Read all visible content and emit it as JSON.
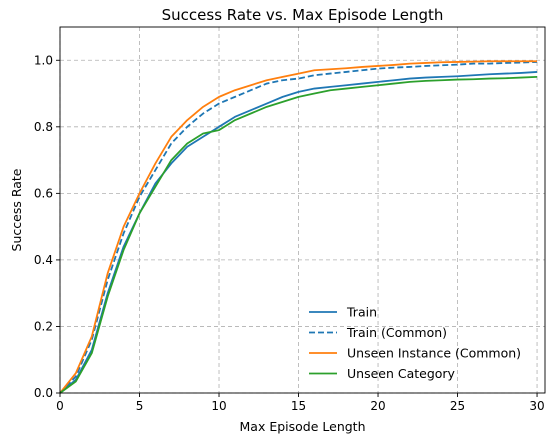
{
  "chart_data": {
    "type": "line",
    "title": "Success Rate vs. Max Episode Length",
    "xlabel": "Max Episode Length",
    "ylabel": "Success Rate",
    "xlim": [
      0,
      30.5
    ],
    "ylim": [
      0,
      1.1
    ],
    "xticks": [
      0,
      5,
      10,
      15,
      20,
      25,
      30
    ],
    "yticks": [
      0.0,
      0.2,
      0.4,
      0.6,
      0.8,
      1.0
    ],
    "xtick_labels": [
      "0",
      "5",
      "10",
      "15",
      "20",
      "25",
      "30"
    ],
    "ytick_labels": [
      "0.0",
      "0.2",
      "0.4",
      "0.6",
      "0.8",
      "1.0"
    ],
    "grid": true,
    "legend_position": "lower-right",
    "x": [
      0,
      1,
      2,
      3,
      4,
      5,
      6,
      7,
      8,
      9,
      10,
      11,
      12,
      13,
      14,
      15,
      16,
      17,
      18,
      19,
      20,
      21,
      22,
      23,
      24,
      25,
      26,
      27,
      28,
      29,
      30
    ],
    "series": [
      {
        "name": "Train",
        "color": "#1f77b4",
        "style": "solid",
        "values": [
          0.0,
          0.04,
          0.13,
          0.3,
          0.44,
          0.54,
          0.63,
          0.69,
          0.74,
          0.77,
          0.8,
          0.83,
          0.85,
          0.87,
          0.89,
          0.905,
          0.915,
          0.92,
          0.925,
          0.93,
          0.935,
          0.94,
          0.945,
          0.948,
          0.95,
          0.952,
          0.955,
          0.958,
          0.96,
          0.962,
          0.965
        ]
      },
      {
        "name": "Train (Common)",
        "color": "#1f77b4",
        "style": "dashed",
        "values": [
          0.0,
          0.05,
          0.16,
          0.34,
          0.48,
          0.59,
          0.67,
          0.75,
          0.8,
          0.84,
          0.87,
          0.89,
          0.91,
          0.93,
          0.94,
          0.945,
          0.955,
          0.96,
          0.965,
          0.97,
          0.975,
          0.978,
          0.98,
          0.983,
          0.985,
          0.987,
          0.99,
          0.99,
          0.992,
          0.993,
          0.995
        ]
      },
      {
        "name": "Unseen Instance (Common)",
        "color": "#ff7f0e",
        "style": "solid",
        "values": [
          0.0,
          0.06,
          0.17,
          0.36,
          0.5,
          0.6,
          0.69,
          0.77,
          0.82,
          0.86,
          0.89,
          0.91,
          0.925,
          0.94,
          0.95,
          0.96,
          0.97,
          0.973,
          0.976,
          0.98,
          0.983,
          0.986,
          0.99,
          0.992,
          0.994,
          0.995,
          0.996,
          0.997,
          0.997,
          0.997,
          0.997
        ]
      },
      {
        "name": "Unseen Category",
        "color": "#2ca02c",
        "style": "solid",
        "values": [
          0.0,
          0.035,
          0.12,
          0.29,
          0.43,
          0.54,
          0.62,
          0.7,
          0.75,
          0.78,
          0.79,
          0.82,
          0.84,
          0.86,
          0.875,
          0.89,
          0.9,
          0.91,
          0.915,
          0.92,
          0.925,
          0.93,
          0.935,
          0.938,
          0.94,
          0.942,
          0.943,
          0.945,
          0.946,
          0.948,
          0.95
        ]
      }
    ]
  }
}
